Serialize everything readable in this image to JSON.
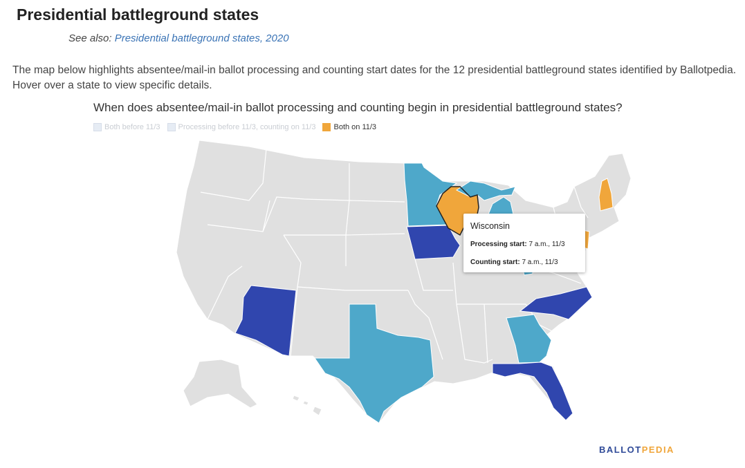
{
  "title": "Presidential battleground states",
  "see_also": {
    "prefix": "See also:",
    "link_text": "Presidential battleground states, 2020"
  },
  "intro": "The map below highlights absentee/mail-in ballot processing and counting start dates for the 12 presidential battleground states identified by Ballotpedia. Hover over a state to view specific details.",
  "map": {
    "heading": "When does absentee/mail-in ballot processing and counting begin in presidential battleground states?",
    "legend": [
      {
        "label": "Both before 11/3",
        "color": "#3046ae",
        "hidden": true
      },
      {
        "label": "Processing before 11/3, counting on 11/3",
        "color": "#4ea8ca",
        "hidden": true
      },
      {
        "label": "Both on 11/3",
        "color": "#f0a63b",
        "hidden": false
      }
    ],
    "colors": {
      "base": "#e0e0e0",
      "border": "#ffffff",
      "both_before": "#3046ae",
      "processing_before": "#4ea8ca",
      "both_on": "#f0a63b"
    },
    "states": [
      {
        "name": "Arizona",
        "category": "both_before"
      },
      {
        "name": "Florida",
        "category": "both_before"
      },
      {
        "name": "Iowa",
        "category": "both_before"
      },
      {
        "name": "North Carolina",
        "category": "both_before"
      },
      {
        "name": "Georgia",
        "category": "processing_before"
      },
      {
        "name": "Michigan",
        "category": "processing_before"
      },
      {
        "name": "Minnesota",
        "category": "processing_before"
      },
      {
        "name": "Ohio",
        "category": "processing_before"
      },
      {
        "name": "Texas",
        "category": "processing_before"
      },
      {
        "name": "New Hampshire",
        "category": "both_on"
      },
      {
        "name": "Pennsylvania",
        "category": "both_on"
      },
      {
        "name": "Wisconsin",
        "category": "both_on",
        "highlighted": true
      }
    ],
    "tooltip": {
      "state": "Wisconsin",
      "processing_label": "Processing start:",
      "processing_value": "7 a.m., 11/3",
      "counting_label": "Counting start:",
      "counting_value": "7 a.m., 11/3"
    }
  },
  "brand": {
    "part1": "BALLOT",
    "part2": "PEDIA",
    "color1": "#2f4a98",
    "color2": "#f0a63b"
  }
}
